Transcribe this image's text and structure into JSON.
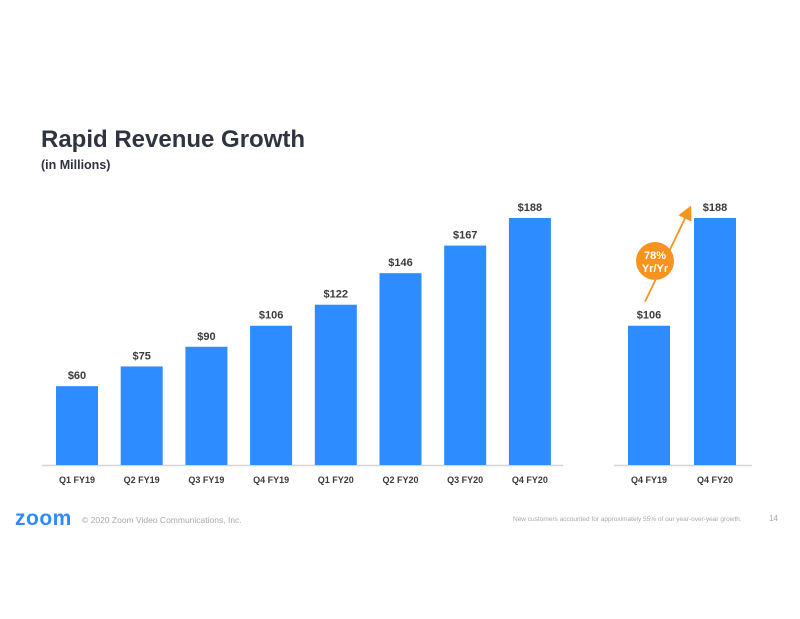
{
  "slide": {
    "title": "Rapid Revenue Growth",
    "subtitle": "(in Millions)",
    "logo_text": "zoom",
    "copyright": "© 2020 Zoom Video Communications, Inc.",
    "footnote": "New customers accounted for approximately 55% of our year-over-year growth.",
    "page_number": "14"
  },
  "colors": {
    "bar": "#2d8cff",
    "axis": "#d4d4d4",
    "badge": "#f7931e",
    "logo": "#2d8cff"
  },
  "chart_data": [
    {
      "type": "bar",
      "title": "Rapid Revenue Growth",
      "subtitle": "(in Millions)",
      "categories": [
        "Q1 FY19",
        "Q2 FY19",
        "Q3 FY19",
        "Q4 FY19",
        "Q1 FY20",
        "Q2 FY20",
        "Q3 FY20",
        "Q4 FY20"
      ],
      "values": [
        60,
        75,
        90,
        106,
        122,
        146,
        167,
        188
      ],
      "value_labels": [
        "$60",
        "$75",
        "$90",
        "$106",
        "$122",
        "$146",
        "$167",
        "$188"
      ],
      "ylim": [
        0,
        188
      ],
      "grid": false
    },
    {
      "type": "bar",
      "categories": [
        "Q4 FY19",
        "Q4 FY20"
      ],
      "values": [
        106,
        188
      ],
      "value_labels": [
        "$106",
        "$188"
      ],
      "ylim": [
        0,
        188
      ],
      "grid": false,
      "annotation": {
        "line1": "78%",
        "line2": "Yr/Yr"
      }
    }
  ]
}
